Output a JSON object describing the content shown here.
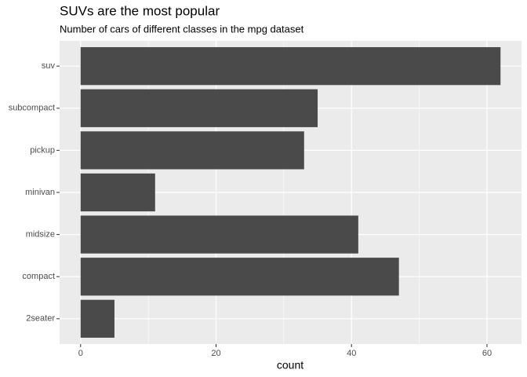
{
  "chart_data": {
    "type": "bar",
    "orientation": "horizontal",
    "title": "SUVs are the most popular",
    "subtitle": "Number of cars of different classes in the mpg dataset",
    "x_label": "count",
    "categories": [
      "2seater",
      "compact",
      "midsize",
      "minivan",
      "pickup",
      "subcompact",
      "suv"
    ],
    "values": [
      5,
      47,
      41,
      11,
      33,
      35,
      62
    ],
    "color": "#4a4a4a",
    "xlim": [
      -3.1,
      65.1
    ],
    "xticks": [
      0,
      20,
      40,
      60
    ],
    "x_minor_ticks": [
      10,
      30,
      50
    ],
    "grid": true
  }
}
